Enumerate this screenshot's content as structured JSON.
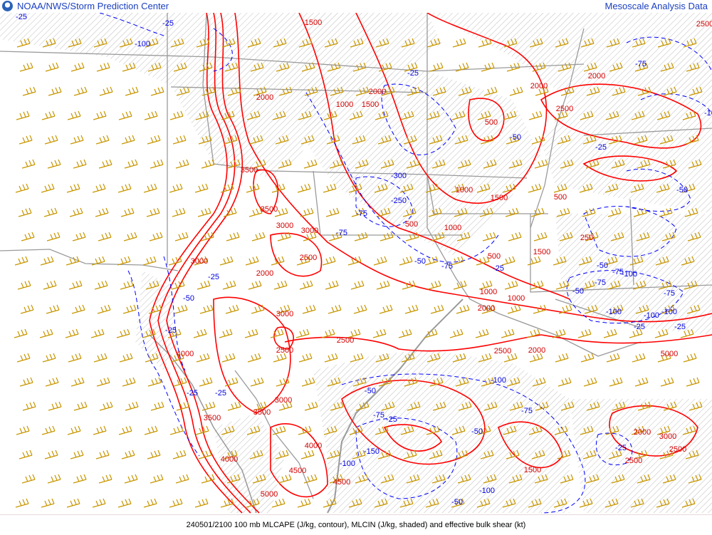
{
  "header": {
    "agency": "NOAA/NWS/Storm Prediction Center",
    "product": "Mesoscale Analysis Data",
    "logo": "noaa-logo"
  },
  "footer": {
    "caption": "240501/2100 100 mb MLCAPE (J/kg, contour), MLCIN (J/kg, shaded) and effective bulk shear (kt)"
  },
  "colors": {
    "cape_contour": "#ff0000",
    "cin_contour": "#0000ff",
    "shear_barbs": "#c89600",
    "boundaries": "#a0a0a0",
    "cin_shading": "#b0b0b0"
  },
  "cape_labels": [
    "1500",
    "2000",
    "2000",
    "1000",
    "1500",
    "2000",
    "2500",
    "500",
    "3500",
    "3500",
    "3000",
    "3000",
    "2500",
    "2000",
    "3000",
    "2500",
    "2500",
    "2000",
    "1000",
    "1500",
    "500",
    "1000",
    "500",
    "1000",
    "1500",
    "500",
    "250",
    "2500",
    "2000",
    "3000",
    "4000",
    "3500",
    "4000",
    "3500",
    "4500",
    "5000",
    "3000",
    "4000",
    "2500",
    "2000",
    "3000",
    "2500",
    "1500",
    "1000",
    "2000",
    "2500",
    "5000",
    "4500"
  ],
  "cin_labels": [
    "-25",
    "-25",
    "-100",
    "-75",
    "-25",
    "-50",
    "-25",
    "-100",
    "-25",
    "-75",
    "-100",
    "-100",
    "-25",
    "-50",
    "-100",
    "-75",
    "-300",
    "-250",
    "-75",
    "-50",
    "-75",
    "-25",
    "-50",
    "-25",
    "-25",
    "-100",
    "-50",
    "-75",
    "-25",
    "-50",
    "-75",
    "-150",
    "-100",
    "-100",
    "-75",
    "-50",
    "-25",
    "-50",
    "-75",
    "-25",
    "-100",
    "-50",
    "-25"
  ]
}
